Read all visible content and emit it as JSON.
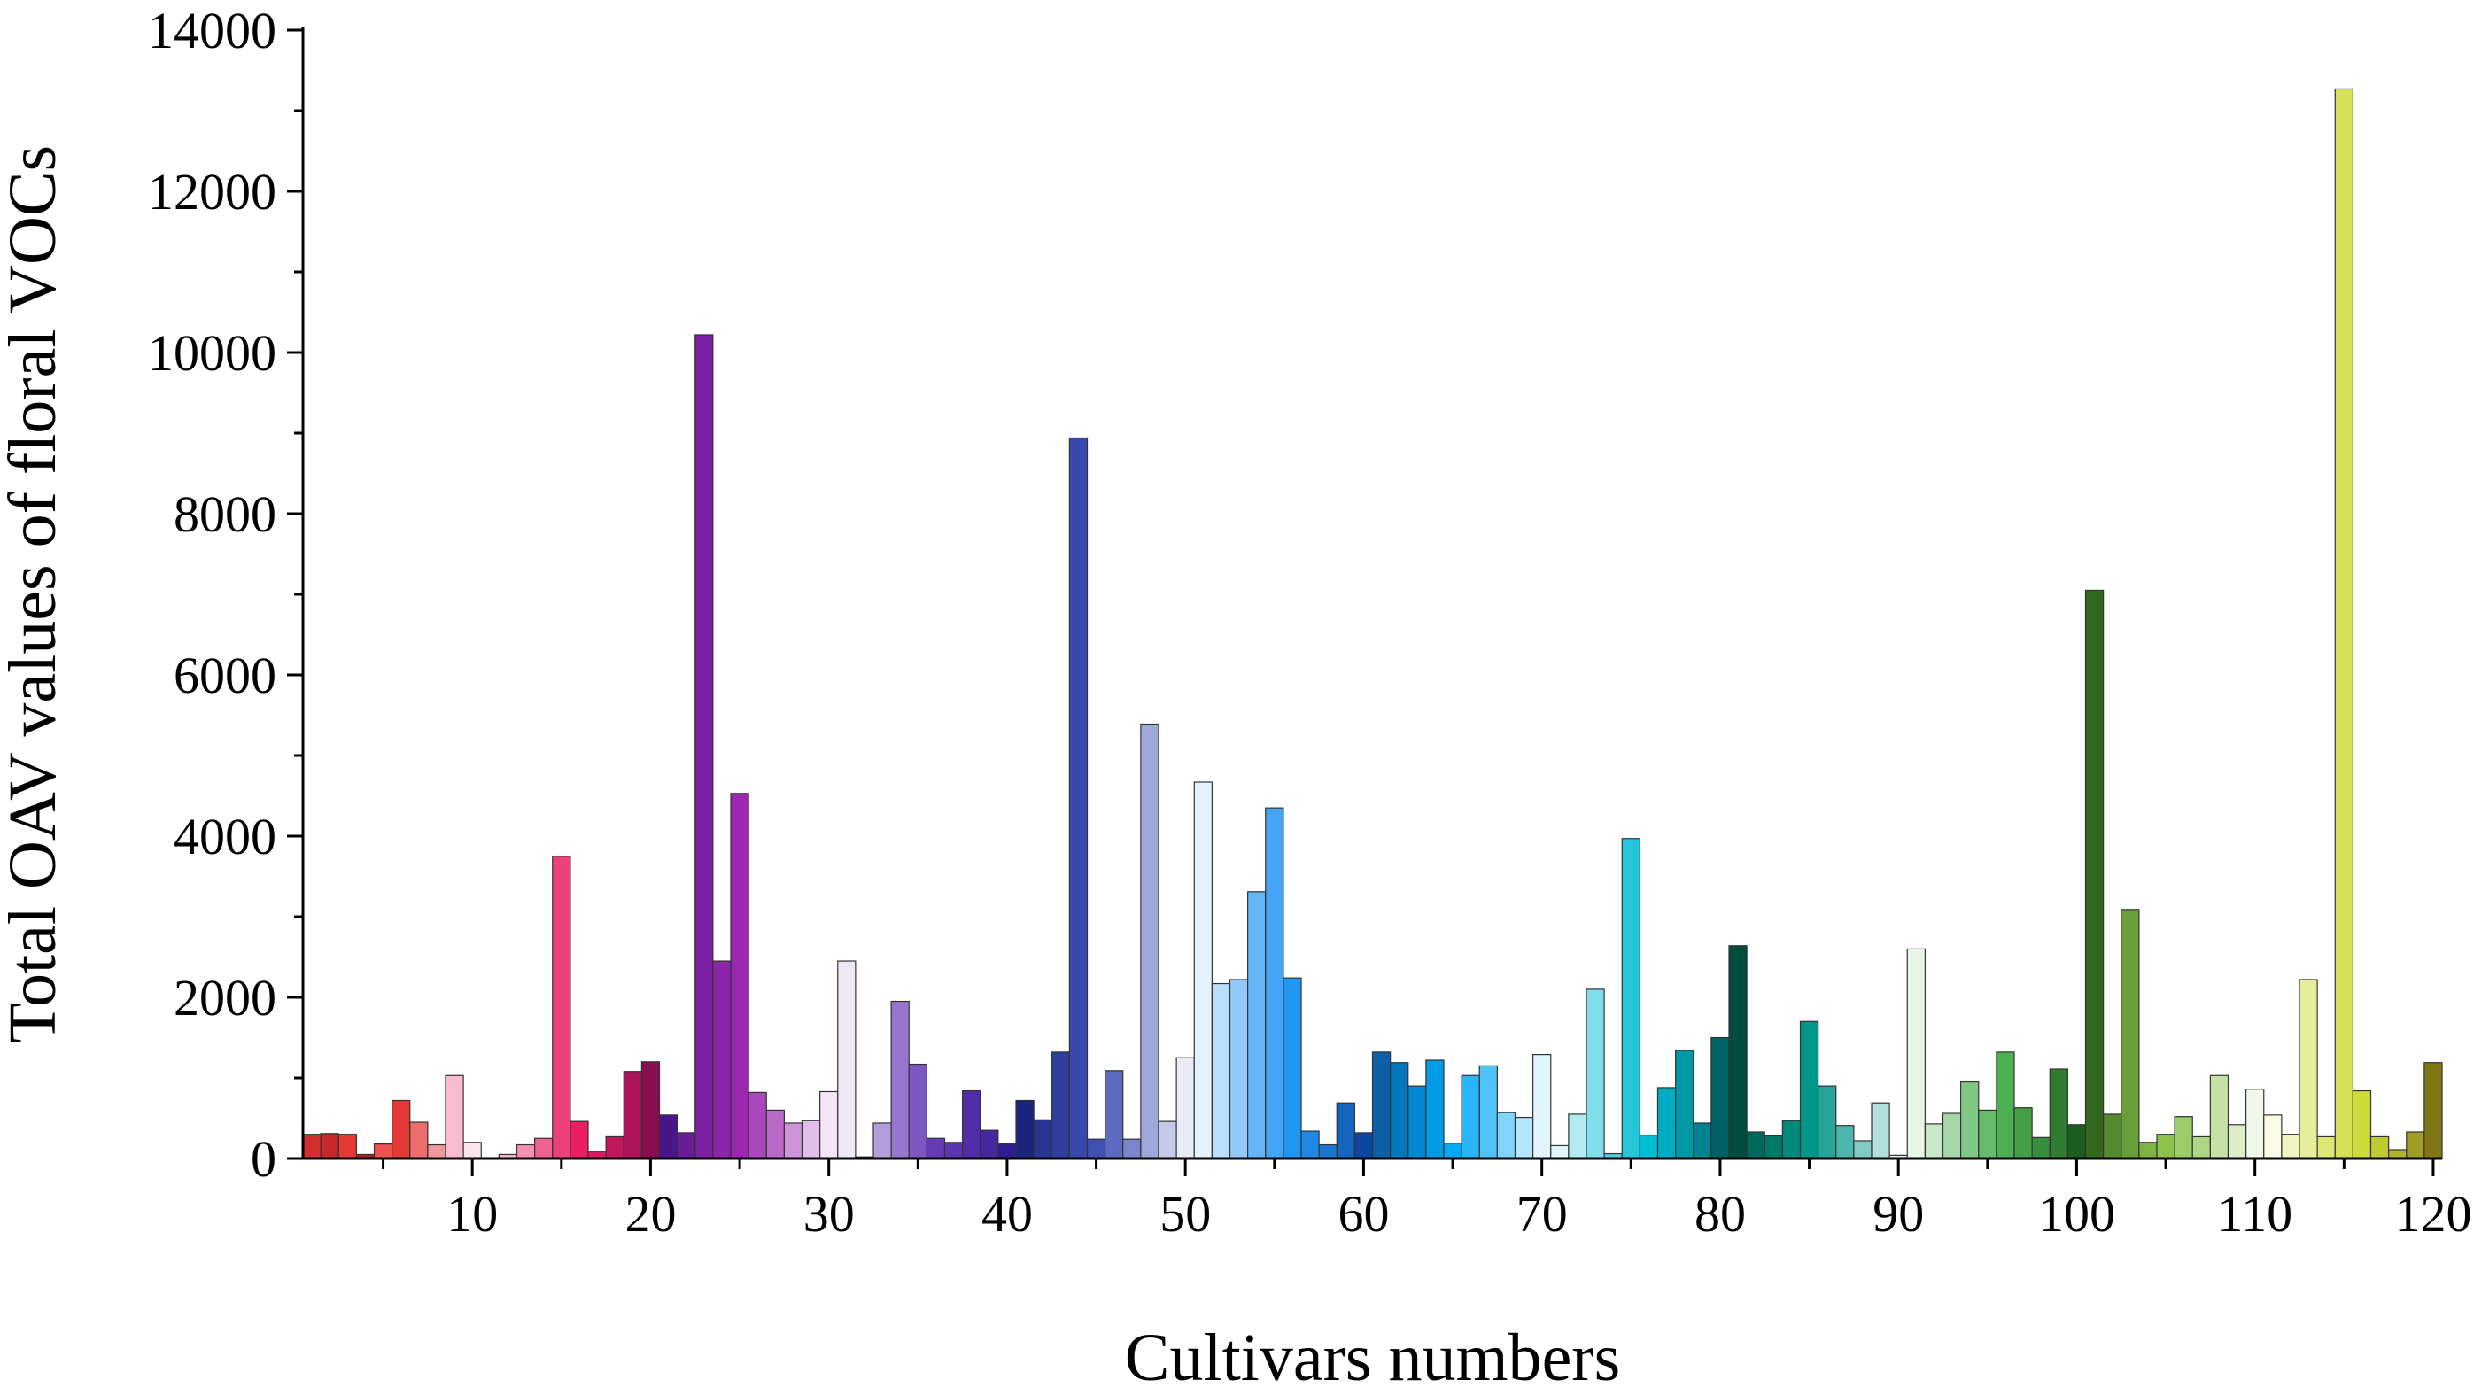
{
  "chart_data": {
    "type": "bar",
    "title": "",
    "xlabel": "Cultivars numbers",
    "ylabel": "Total OAV values of floral VOCs",
    "xlim": [
      0.5,
      120.5
    ],
    "ylim": [
      0,
      14000
    ],
    "x_ticks": [
      10,
      20,
      30,
      40,
      50,
      60,
      70,
      80,
      90,
      100,
      110,
      120
    ],
    "y_ticks": [
      0,
      2000,
      4000,
      6000,
      8000,
      10000,
      12000,
      14000
    ],
    "grid": false,
    "legend": "none",
    "x": [
      1,
      2,
      3,
      4,
      5,
      6,
      7,
      8,
      9,
      10,
      11,
      12,
      13,
      14,
      15,
      16,
      17,
      18,
      19,
      20,
      21,
      22,
      23,
      24,
      25,
      26,
      27,
      28,
      29,
      30,
      31,
      32,
      33,
      34,
      35,
      36,
      37,
      38,
      39,
      40,
      41,
      42,
      43,
      44,
      45,
      46,
      47,
      48,
      49,
      50,
      51,
      52,
      53,
      54,
      55,
      56,
      57,
      58,
      59,
      60,
      61,
      62,
      63,
      64,
      65,
      66,
      67,
      68,
      69,
      70,
      71,
      72,
      73,
      74,
      75,
      76,
      77,
      78,
      79,
      80,
      81,
      82,
      83,
      84,
      85,
      86,
      87,
      88,
      89,
      90,
      91,
      92,
      93,
      94,
      95,
      96,
      97,
      98,
      99,
      100,
      101,
      102,
      103,
      104,
      105,
      106,
      107,
      108,
      109,
      110,
      111,
      112,
      113,
      114,
      115,
      116,
      117,
      118,
      119,
      120
    ],
    "values": [
      300,
      310,
      300,
      50,
      180,
      720,
      450,
      170,
      1030,
      200,
      10,
      50,
      170,
      250,
      3750,
      460,
      90,
      270,
      1080,
      1200,
      540,
      320,
      10220,
      2450,
      4530,
      820,
      600,
      440,
      470,
      830,
      2450,
      20,
      440,
      1950,
      1170,
      250,
      200,
      840,
      350,
      180,
      720,
      480,
      1320,
      8940,
      240,
      1090,
      240,
      5390,
      460,
      1250,
      4670,
      2170,
      2220,
      3310,
      4350,
      2240,
      340,
      170,
      690,
      320,
      1320,
      1190,
      900,
      1220,
      190,
      1030,
      1150,
      570,
      510,
      1290,
      160,
      550,
      2100,
      60,
      3970,
      290,
      880,
      1340,
      440,
      1500,
      2640,
      330,
      280,
      470,
      1700,
      900,
      410,
      220,
      690,
      40,
      2600,
      430,
      560,
      950,
      600,
      1320,
      630,
      260,
      1110,
      420,
      7050,
      550,
      3090,
      200,
      300,
      520,
      270,
      1030,
      420,
      860,
      540,
      300,
      2220,
      270,
      13270,
      840,
      270,
      110,
      330,
      1190
    ],
    "colors": [
      "#d32f2f",
      "#c62828",
      "#e53935",
      "#b71c1c",
      "#ef5350",
      "#e53935",
      "#ef6c6c",
      "#ef9a9a",
      "#f8bbd0",
      "#fce4ec",
      "#fce4ec",
      "#f8bbd0",
      "#f48fb1",
      "#f06292",
      "#ec407a",
      "#e91e63",
      "#d81b60",
      "#c2185b",
      "#ad1457",
      "#880e4f",
      "#4a148c",
      "#6a1b9a",
      "#7b1fa2",
      "#8e24aa",
      "#9c27b0",
      "#ab47bc",
      "#ba68c8",
      "#ce93d8",
      "#e1bee7",
      "#f3e5f5",
      "#ede7f6",
      "#d1c4e9",
      "#b39ddb",
      "#9575cd",
      "#7e57c2",
      "#673ab7",
      "#5e35b1",
      "#512da8",
      "#4527a0",
      "#311b92",
      "#1a237e",
      "#283593",
      "#303f9f",
      "#3949ab",
      "#3f51b5",
      "#5c6bc0",
      "#7986cb",
      "#9fa8da",
      "#c5cae9",
      "#e8eaf6",
      "#e3f2fd",
      "#bbdefb",
      "#90caf9",
      "#64b5f6",
      "#42a5f5",
      "#2196f3",
      "#1e88e5",
      "#1976d2",
      "#1565c0",
      "#0d47a1",
      "#0d5fa8",
      "#0277bd",
      "#0288d1",
      "#039be5",
      "#03a9f4",
      "#29b6f6",
      "#4fc3f7",
      "#81d4fa",
      "#b3e5fc",
      "#e1f5fe",
      "#e0f7fa",
      "#b2ebf2",
      "#80deea",
      "#4dd0e1",
      "#26c6da",
      "#00bcd4",
      "#00acc1",
      "#0097a7",
      "#00838f",
      "#006064",
      "#004d40",
      "#00695c",
      "#00796b",
      "#00897b",
      "#009688",
      "#26a69a",
      "#4db6ac",
      "#80cbc4",
      "#b2dfdb",
      "#e0f2f1",
      "#e8f5e9",
      "#c8e6c9",
      "#a5d6a7",
      "#81c784",
      "#66bb6a",
      "#4caf50",
      "#43a047",
      "#388e3c",
      "#2e7d32",
      "#1b5e20",
      "#33691e",
      "#558b2f",
      "#689f38",
      "#7cb342",
      "#8bc34a",
      "#9ccc65",
      "#aed581",
      "#c5e1a5",
      "#dcedc8",
      "#f1f8e9",
      "#f9fbe7",
      "#f0f4c3",
      "#e6ee9c",
      "#dce775",
      "#d4e157",
      "#cddc39",
      "#c0ca33",
      "#afb42b",
      "#9e9d24",
      "#827717"
    ]
  }
}
